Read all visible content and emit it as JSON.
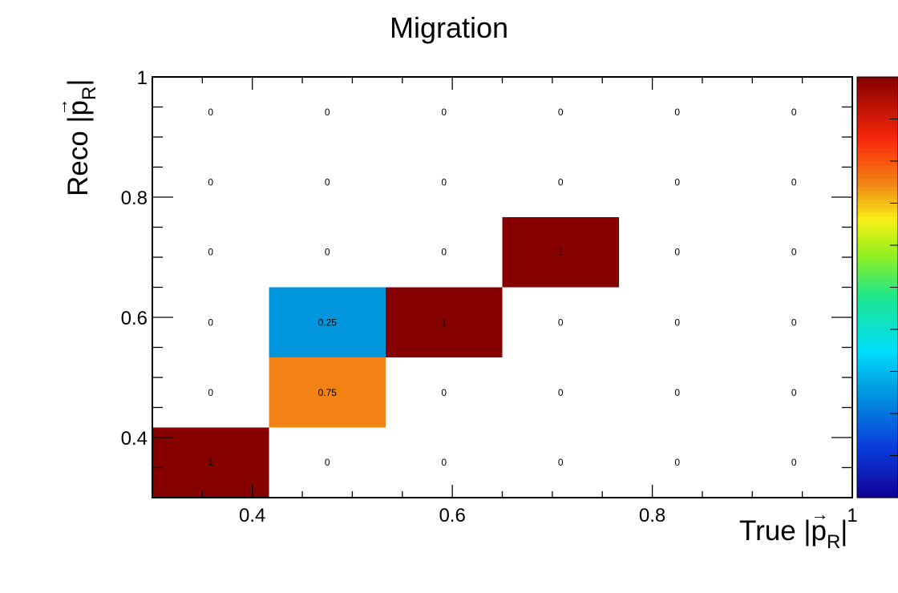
{
  "chart_data": {
    "type": "heatmap",
    "title": "Migration",
    "xlabel": {
      "prefix": "True |",
      "symbol": "p",
      "subscript": "R",
      "suffix": "|"
    },
    "ylabel": {
      "prefix": "Reco |",
      "symbol": "p",
      "subscript": "R",
      "suffix": "|"
    },
    "xlim": [
      0.3,
      1.0
    ],
    "ylim": [
      0.3,
      1.0
    ],
    "x_bin_edges": [
      0.3,
      0.4167,
      0.5333,
      0.65,
      0.7667,
      0.8833,
      1.0
    ],
    "y_bin_edges": [
      0.3,
      0.4167,
      0.5333,
      0.65,
      0.7667,
      0.8833,
      1.0
    ],
    "x_ticks": [
      0.4,
      0.6,
      0.8,
      1.0
    ],
    "x_tick_labels": [
      "0.4",
      "0.6",
      "0.8",
      "1"
    ],
    "y_ticks": [
      0.4,
      0.6,
      0.8,
      1.0
    ],
    "y_tick_labels": [
      "0.4",
      "0.6",
      "0.8",
      "1"
    ],
    "z_range": [
      0,
      1
    ],
    "colormap": "rainbow",
    "colorbar": "right",
    "grid": false,
    "values_by_row_bottom_to_top": [
      [
        "1",
        "0",
        "0",
        "0",
        "0",
        "0"
      ],
      [
        "0",
        "0.75",
        "0",
        "0",
        "0",
        "0"
      ],
      [
        "0",
        "0.25",
        "1",
        "0",
        "0",
        "0"
      ],
      [
        "0",
        "0",
        "0",
        "1",
        "0",
        "0"
      ],
      [
        "0",
        "0",
        "0",
        "0",
        "0",
        "0"
      ],
      [
        "0",
        "0",
        "0",
        "0",
        "0",
        "0"
      ]
    ]
  }
}
